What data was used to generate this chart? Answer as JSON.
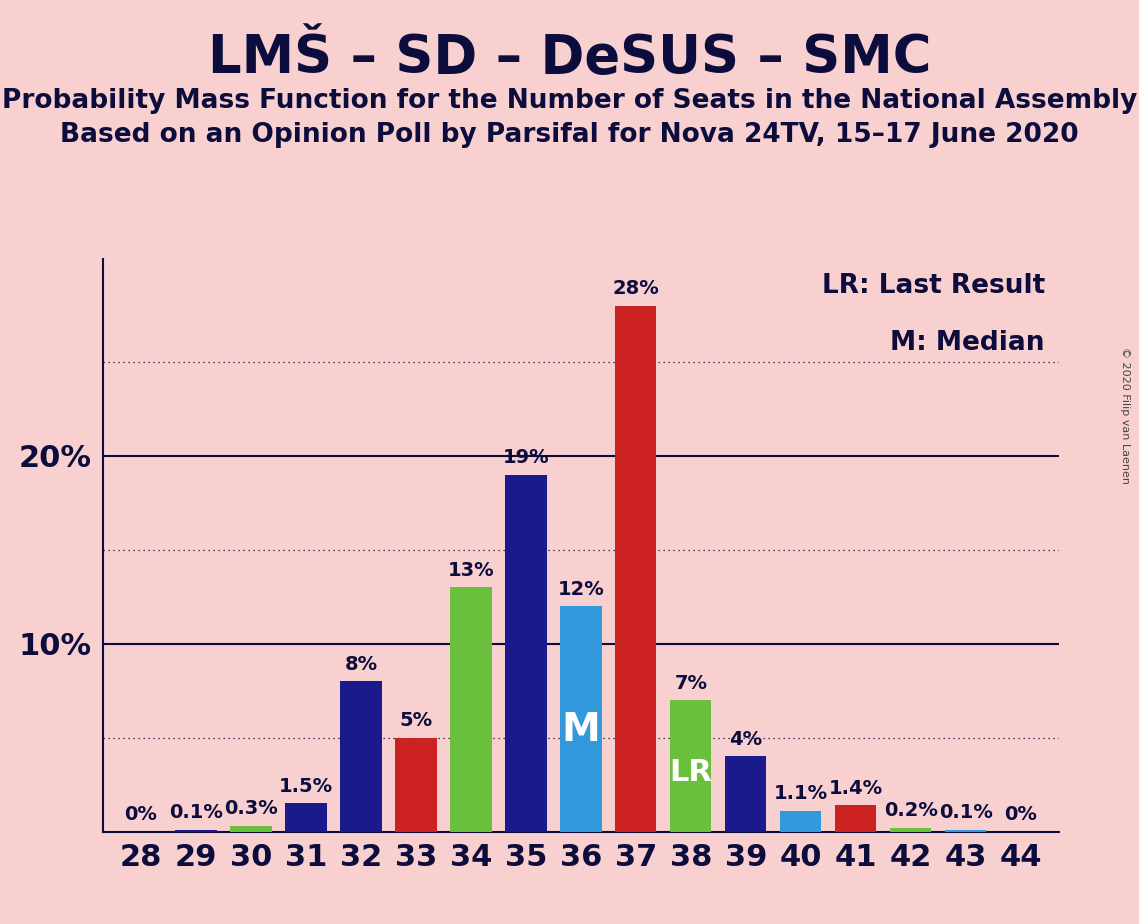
{
  "title": "LMŠ – SD – DeSUS – SMC",
  "subtitle1": "Probability Mass Function for the Number of Seats in the National Assembly",
  "subtitle2": "Based on an Opinion Poll by Parsifal for Nova 24TV, 15–17 June 2020",
  "copyright": "© 2020 Filip van Laenen",
  "seats": [
    28,
    29,
    30,
    31,
    32,
    33,
    34,
    35,
    36,
    37,
    38,
    39,
    40,
    41,
    42,
    43,
    44
  ],
  "values": [
    0.0,
    0.1,
    0.3,
    1.5,
    8.0,
    5.0,
    13.0,
    19.0,
    12.0,
    28.0,
    7.0,
    4.0,
    1.1,
    1.4,
    0.2,
    0.1,
    0.0
  ],
  "labels": [
    "0%",
    "0.1%",
    "0.3%",
    "1.5%",
    "8%",
    "5%",
    "13%",
    "19%",
    "12%",
    "28%",
    "7%",
    "4%",
    "1.1%",
    "1.4%",
    "0.2%",
    "0.1%",
    "0%"
  ],
  "colors": [
    "#1a1a8c",
    "#1a1a8c",
    "#6abf3c",
    "#1a1a8c",
    "#1a1a8c",
    "#cc2222",
    "#6abf3c",
    "#1a1a8c",
    "#3399dd",
    "#cc2222",
    "#6abf3c",
    "#1a1a8c",
    "#3399dd",
    "#cc2222",
    "#6abf3c",
    "#3399dd",
    "#6abf3c"
  ],
  "background_color": "#f9d0d0",
  "median_seat": 36,
  "lr_seat": 38,
  "legend_lr": "LR: Last Result",
  "legend_m": "M: Median",
  "solid_yticks": [
    10,
    20
  ],
  "dotted_yticks": [
    5,
    15,
    25
  ],
  "title_fontsize": 38,
  "subtitle_fontsize": 19,
  "tick_fontsize": 22,
  "label_fontsize": 14,
  "legend_fontsize": 19,
  "text_color": "#0d0d3d"
}
